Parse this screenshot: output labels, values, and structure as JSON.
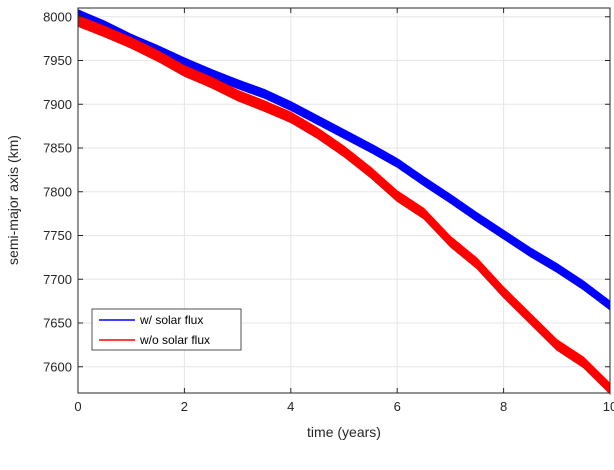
{
  "chart_data": {
    "type": "line",
    "xlabel": "time (years)",
    "ylabel": "semi-major axis (km)",
    "xlim": [
      0,
      10
    ],
    "ylim": [
      7570,
      8010
    ],
    "xticks": [
      0,
      2,
      4,
      6,
      8,
      10
    ],
    "xtick_labels": [
      "0",
      "2",
      "4",
      "6",
      "8",
      "10"
    ],
    "yticks": [
      7600,
      7650,
      7700,
      7750,
      7800,
      7850,
      7900,
      7950,
      8000
    ],
    "ytick_labels": [
      "7600",
      "7650",
      "7700",
      "7750",
      "7800",
      "7850",
      "7900",
      "7950",
      "8000"
    ],
    "grid": true,
    "legend_position": "lower-left",
    "series": [
      {
        "name": "w/ solar flux",
        "color": "#0000ff",
        "x": [
          0,
          0.5,
          1,
          1.5,
          2,
          2.5,
          3,
          3.5,
          4,
          4.5,
          5,
          5.5,
          6,
          6.5,
          7,
          7.5,
          8,
          8.5,
          9,
          9.5,
          10
        ],
        "y": [
          8003,
          7990,
          7975,
          7962,
          7948,
          7935,
          7923,
          7912,
          7898,
          7882,
          7866,
          7850,
          7833,
          7812,
          7792,
          7771,
          7751,
          7731,
          7713,
          7693,
          7670
        ],
        "band_half_width": 5
      },
      {
        "name": "w/o solar flux",
        "color": "#ff0000",
        "x": [
          0,
          0.5,
          1,
          1.5,
          2,
          2.5,
          3,
          3.5,
          4,
          4.5,
          5,
          5.5,
          6,
          6.5,
          7,
          7.5,
          8,
          8.5,
          9,
          9.5,
          10
        ],
        "y": [
          7995,
          7983,
          7970,
          7955,
          7938,
          7925,
          7910,
          7898,
          7885,
          7867,
          7846,
          7822,
          7795,
          7775,
          7743,
          7718,
          7685,
          7655,
          7625,
          7605,
          7575
        ],
        "band_half_width": 6
      }
    ]
  }
}
